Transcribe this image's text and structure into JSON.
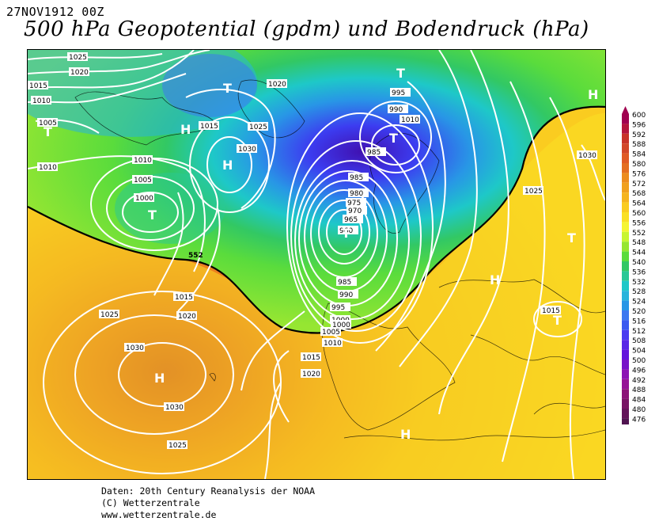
{
  "header": {
    "date": "27NOV1912 00Z",
    "title": "500 hPa Geopotential (gpdm) und Bodendruck (hPa)"
  },
  "map": {
    "highs": [
      "H",
      "H",
      "H",
      "H",
      "H",
      "H"
    ],
    "lows": [
      "T",
      "T",
      "T",
      "T",
      "T",
      "T",
      "T",
      "T"
    ],
    "isobar_labels": [
      "1025",
      "1020",
      "1015",
      "1010",
      "1005",
      "1010",
      "1015",
      "1020",
      "1025",
      "1030",
      "1010",
      "1005",
      "1000",
      "995",
      "990",
      "985",
      "985",
      "980",
      "975",
      "970",
      "965",
      "960",
      "985",
      "990",
      "995",
      "1000",
      "1005",
      "1010",
      "1015",
      "1020",
      "1025",
      "1030",
      "1030",
      "1025",
      "1020",
      "1015",
      "1010",
      "1000",
      "1030",
      "1025",
      "1015"
    ],
    "contour_label": "552",
    "colors": {
      "low": "#5010a0",
      "mid": "#1ec8c8",
      "green": "#32c832",
      "yellow": "#ffff28",
      "orange": "#f08c1e",
      "high": "#b42828"
    }
  },
  "legend": {
    "values": [
      "600",
      "596",
      "592",
      "588",
      "584",
      "580",
      "576",
      "572",
      "568",
      "564",
      "560",
      "556",
      "552",
      "548",
      "544",
      "540",
      "536",
      "532",
      "528",
      "524",
      "520",
      "516",
      "512",
      "508",
      "504",
      "500",
      "496",
      "492",
      "488",
      "484",
      "480",
      "476"
    ],
    "colors": [
      "#a00050",
      "#b4143c",
      "#c83228",
      "#d24628",
      "#e05a24",
      "#e46e20",
      "#ec8c1e",
      "#f0a01e",
      "#f5b41e",
      "#facc20",
      "#fae024",
      "#f5f532",
      "#c8f532",
      "#96e632",
      "#5adc3c",
      "#32c864",
      "#28c896",
      "#1ec8c8",
      "#28b4dc",
      "#2896e6",
      "#3c78f0",
      "#3c5af0",
      "#4b3cf0",
      "#5a28e6",
      "#6414dc",
      "#7814c8",
      "#8c14b4",
      "#961496",
      "#8c1478",
      "#781464",
      "#64145a",
      "#501450"
    ]
  },
  "credits": {
    "line1": "Daten: 20th Century Reanalysis der NOAA",
    "line2": "(C) Wetterzentrale",
    "line3": "www.wetterzentrale.de"
  }
}
